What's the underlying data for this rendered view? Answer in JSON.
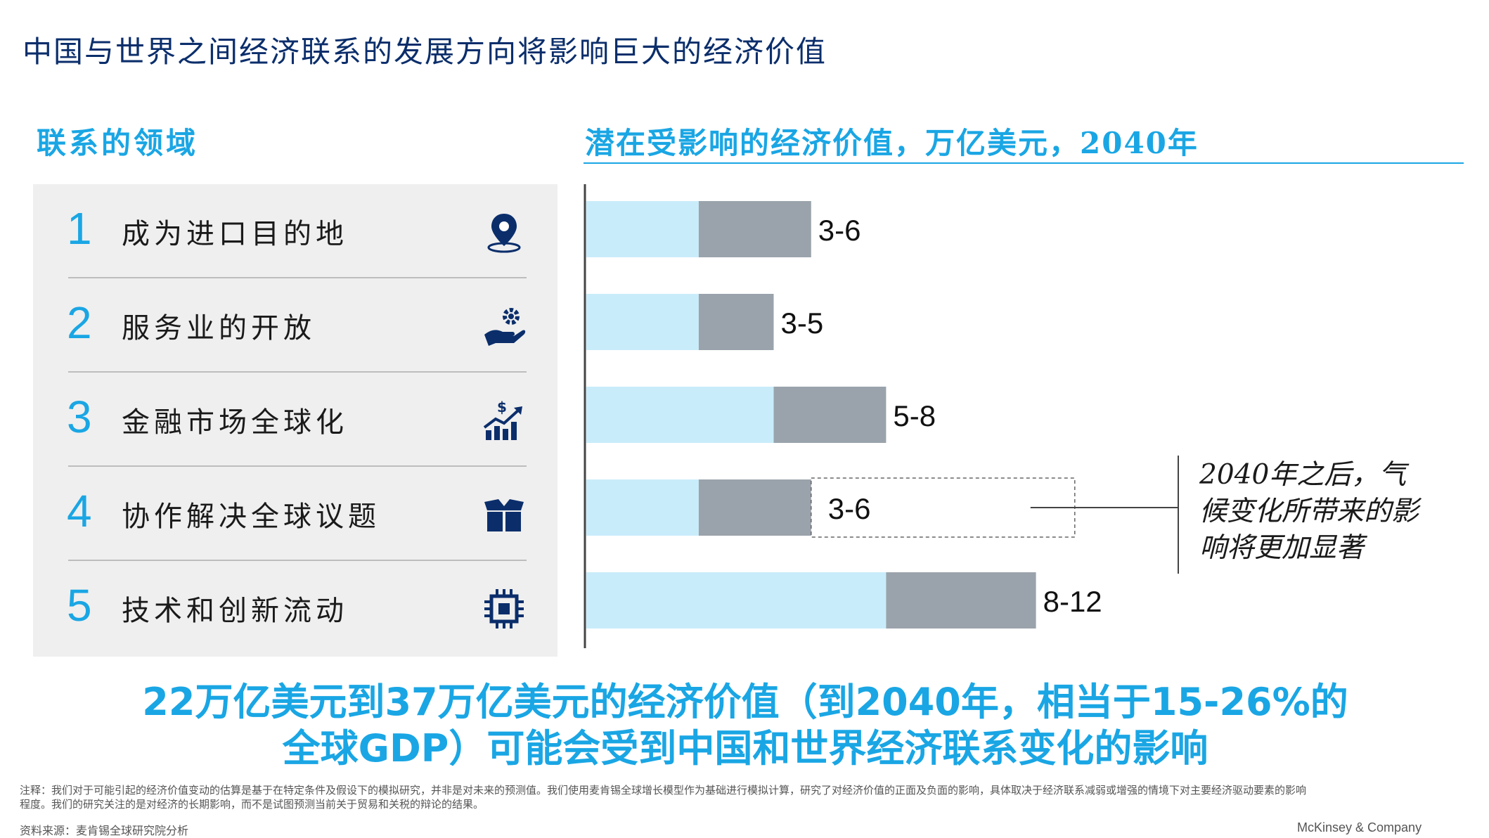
{
  "title": "中国与世界之间经济联系的发展方向将影响巨大的经济价值",
  "left_header": "联系的领域",
  "right_header": "潜在受影响的经济价值，万亿美元，2040年",
  "areas": [
    {
      "num": "1",
      "label": "成为进口目的地",
      "icon": "location-pin-icon"
    },
    {
      "num": "2",
      "label": "服务业的开放",
      "icon": "hand-gear-icon"
    },
    {
      "num": "3",
      "label": "金融市场全球化",
      "icon": "dollar-growth-chart-icon"
    },
    {
      "num": "4",
      "label": "协作解决全球议题",
      "icon": "open-box-icon"
    },
    {
      "num": "5",
      "label": "技术和创新流动",
      "icon": "microchip-icon"
    }
  ],
  "colors": {
    "accent": "#1aa6e4",
    "bar_low": "#c9ecfa",
    "bar_range": "#9aa3ab",
    "title": "#0b2e6b"
  },
  "chart_data": {
    "type": "bar",
    "orientation": "horizontal",
    "stacked_range": true,
    "title": "潜在受影响的经济价值，万亿美元，2040年",
    "categories": [
      "成为进口目的地",
      "服务业的开放",
      "金融市场全球化",
      "协作解决全球议题",
      "技术和创新流动"
    ],
    "low": [
      3,
      3,
      5,
      3,
      8
    ],
    "high": [
      6,
      5,
      8,
      6,
      12
    ],
    "labels": [
      "3-6",
      "3-5",
      "5-8",
      "3-6",
      "8-12"
    ],
    "dashed_extension": [
      false,
      false,
      false,
      true,
      false
    ],
    "xlim": [
      0,
      12
    ],
    "grid": false,
    "legend": "none"
  },
  "annotation": "2040年之后，气候变化所带来的影响将更加显著",
  "summary": {
    "line1": "22万亿美元到37万亿美元的经济价值（到2040年，相当于15-26%的",
    "line2": "全球GDP）可能会受到中国和世界经济联系变化的影响"
  },
  "footnote": "注释：我们对于可能引起的经济价值变动的估算是基于在特定条件及假设下的模拟研究，并非是对未来的预测值。我们使用麦肯锡全球增长模型作为基础进行模拟计算，研究了对经济价值的正面及负面的影响，具体取决于经济联系减弱或增强的情境下对主要经济驱动要素的影响程度。我们的研究关注的是对经济的长期影响，而不是试图预测当前关于贸易和关税的辩论的结果。",
  "source": "资料来源：麦肯锡全球研究院分析",
  "brand": "McKinsey & Company"
}
